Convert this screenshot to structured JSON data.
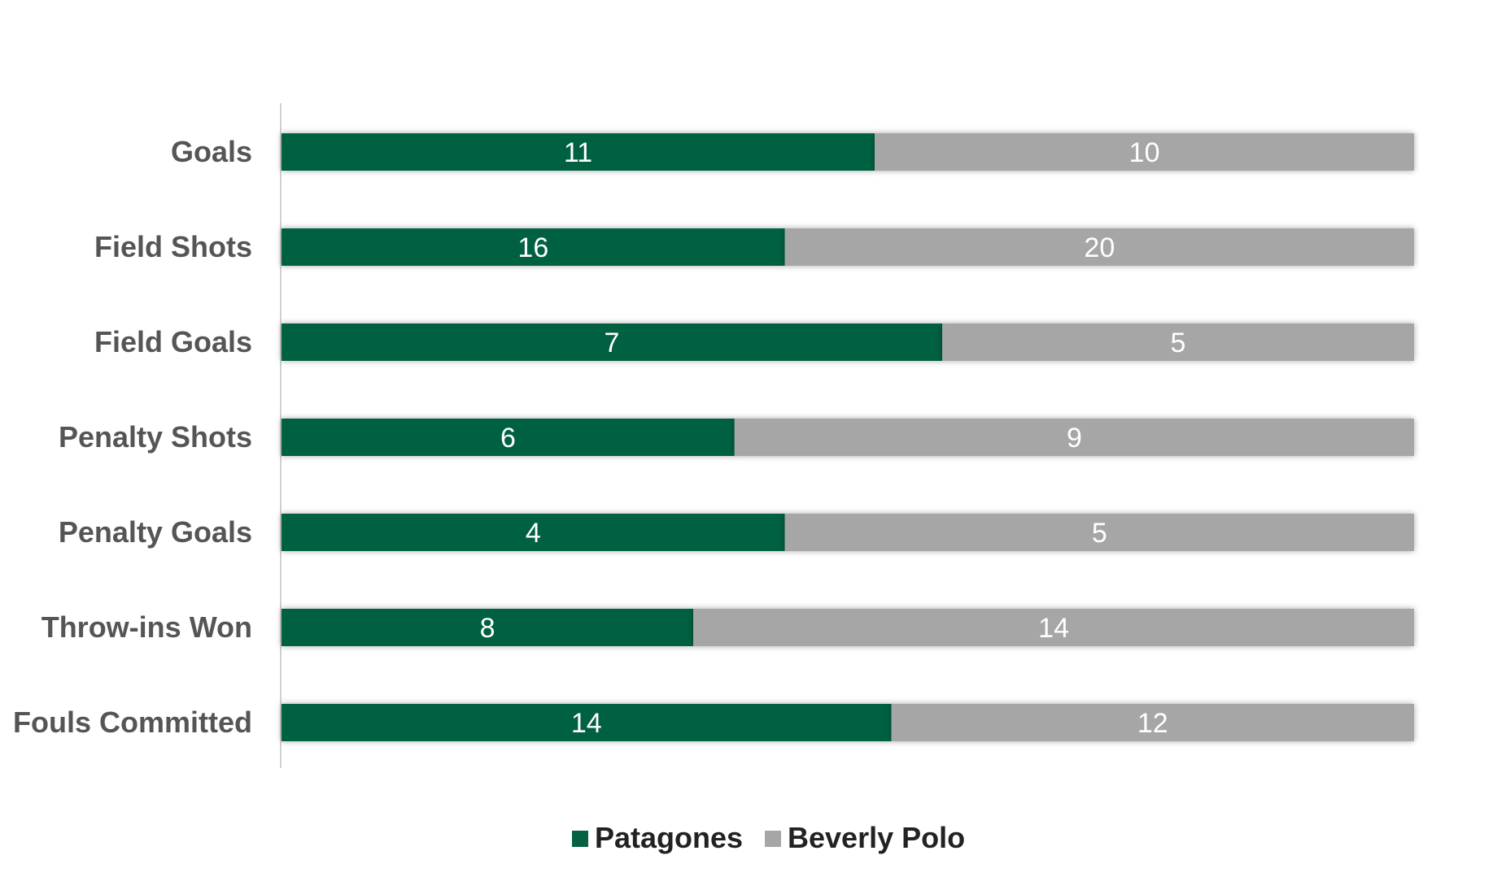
{
  "chart_data": {
    "type": "bar",
    "orientation": "horizontal",
    "stacking": "percent",
    "categories": [
      "Goals",
      "Field Shots",
      "Field Goals",
      "Penalty Shots",
      "Penalty Goals",
      "Throw-ins Won",
      "Fouls Committed"
    ],
    "series": [
      {
        "name": "Patagones",
        "color": "#056142",
        "values": [
          11,
          16,
          7,
          6,
          4,
          8,
          14
        ]
      },
      {
        "name": "Beverly Polo",
        "color": "#a6a6a6",
        "values": [
          10,
          20,
          5,
          9,
          5,
          14,
          12
        ]
      }
    ],
    "data_labels": true,
    "grid": false,
    "legend_position": "bottom"
  }
}
